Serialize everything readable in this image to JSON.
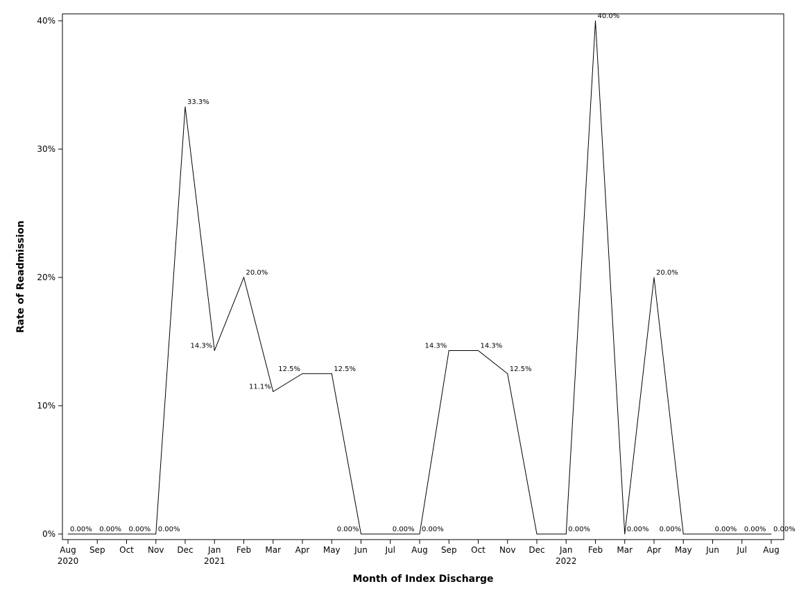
{
  "chart_data": {
    "type": "line",
    "title": "",
    "xlabel": "Month of Index Discharge",
    "ylabel": "Rate of Readmission",
    "ylim": [
      0,
      40
    ],
    "y_ticks": [
      "0%",
      "10%",
      "20%",
      "30%",
      "40%"
    ],
    "y_tick_values": [
      0,
      10,
      20,
      30,
      40
    ],
    "grid": false,
    "x": [
      "Aug 2020",
      "Sep 2020",
      "Oct 2020",
      "Nov 2020",
      "Dec 2020",
      "Jan 2021",
      "Feb 2021",
      "Mar 2021",
      "Apr 2021",
      "May 2021",
      "Jun 2021",
      "Jul 2021",
      "Aug 2021",
      "Sep 2021",
      "Oct 2021",
      "Nov 2021",
      "Dec 2021",
      "Jan 2022",
      "Feb 2022",
      "Mar 2022",
      "Apr 2022",
      "May 2022",
      "Jun 2022",
      "Jul 2022",
      "Aug 2022"
    ],
    "x_tick_labels": [
      "Aug",
      "Sep",
      "Oct",
      "Nov",
      "Dec",
      "Jan",
      "Feb",
      "Mar",
      "Apr",
      "May",
      "Jun",
      "Jul",
      "Aug",
      "Sep",
      "Oct",
      "Nov",
      "Dec",
      "Jan",
      "Feb",
      "Mar",
      "Apr",
      "May",
      "Jun",
      "Jul",
      "Aug"
    ],
    "year_labels": [
      {
        "index": 0,
        "label": "2020"
      },
      {
        "index": 5,
        "label": "2021"
      },
      {
        "index": 17,
        "label": "2022"
      }
    ],
    "series": [
      {
        "values": [
          0,
          0,
          0,
          0,
          33.3,
          14.3,
          20.0,
          11.1,
          12.5,
          12.5,
          0,
          0,
          0,
          14.3,
          14.3,
          12.5,
          null,
          0,
          40.0,
          0,
          20.0,
          0,
          0,
          0,
          0
        ],
        "labels": [
          "0.00%",
          "0.00%",
          "0.00%",
          "0.00%",
          "33.3%",
          "14.3%",
          "20.0%",
          "11.1%",
          "12.5%",
          "12.5%",
          "0.00%",
          "0.00%",
          "0.00%",
          "14.3%",
          "14.3%",
          "12.5%",
          "",
          "0.00%",
          "40.0%",
          "0.00%",
          "20.0%",
          "0.00%",
          "0.00%",
          "0.00%",
          "0.00%"
        ],
        "label_side": [
          "right",
          "right",
          "right",
          "right",
          "right",
          "left",
          "right",
          "left",
          "left",
          "right",
          "left",
          "right",
          "right",
          "left",
          "right",
          "right",
          "right",
          "right",
          "right",
          "right",
          "right",
          "left",
          "right",
          "right",
          "right"
        ]
      }
    ],
    "line_color": "#000000"
  }
}
